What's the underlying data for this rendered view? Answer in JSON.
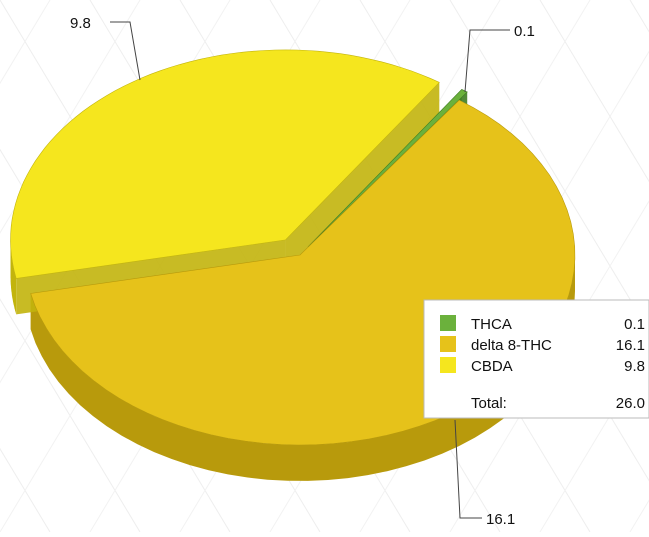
{
  "chart_data": {
    "type": "pie",
    "style": "3d-exploded",
    "slices": [
      {
        "name": "THCA",
        "value": 0.1,
        "label": "0.1",
        "color": "#6bb13c",
        "dark": "#3f7d22"
      },
      {
        "name": "delta 8-THC",
        "value": 16.1,
        "label": "16.1",
        "color": "#e6c21a",
        "dark": "#b89a0c"
      },
      {
        "name": "CBDA",
        "value": 9.8,
        "label": "9.8",
        "color": "#f5e61e",
        "dark": "#c2b40c"
      }
    ],
    "legend": {
      "placement": "right",
      "items": [
        {
          "name": "THCA",
          "value": "0.1",
          "color": "#6bb13c"
        },
        {
          "name": "delta 8-THC",
          "value": "16.1",
          "color": "#e6c21a"
        },
        {
          "name": "CBDA",
          "value": "9.8",
          "color": "#f5e61e"
        }
      ],
      "total_label": "Total:",
      "total_value": "26.0"
    }
  }
}
